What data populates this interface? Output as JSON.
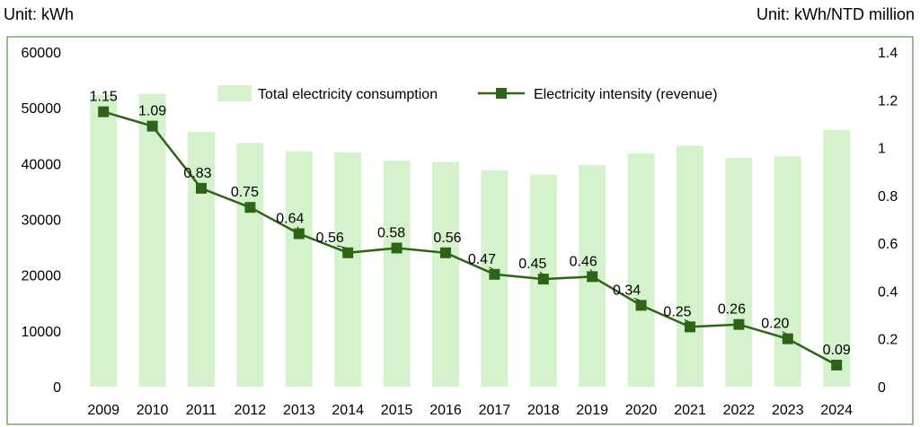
{
  "units": {
    "left": "Unit: kWh",
    "right": "Unit: kWh/NTD million"
  },
  "colors": {
    "bar": "#d6f2cc",
    "line": "#2e6417",
    "marker": "#2e6417",
    "frame": "#3a7d1e"
  },
  "chart_data": {
    "type": "bar",
    "categories": [
      "2009",
      "2010",
      "2011",
      "2012",
      "2013",
      "2014",
      "2015",
      "2016",
      "2017",
      "2018",
      "2019",
      "2020",
      "2021",
      "2022",
      "2023",
      "2024"
    ],
    "series": [
      {
        "name": "Total electricity consumption",
        "type": "bar",
        "axis": "left",
        "values": [
          52300,
          52500,
          45700,
          43700,
          42200,
          42000,
          40500,
          40300,
          38800,
          38000,
          39700,
          41800,
          43200,
          41000,
          41300,
          46000
        ]
      },
      {
        "name": "Electricity intensity (revenue)",
        "type": "line",
        "axis": "right",
        "values": [
          1.15,
          1.09,
          0.83,
          0.75,
          0.64,
          0.56,
          0.58,
          0.56,
          0.47,
          0.45,
          0.46,
          0.34,
          0.25,
          0.26,
          0.2,
          0.09
        ],
        "labels": [
          "1.15",
          "1.09",
          "0.83",
          "0.75",
          "0.64",
          "0.56",
          "0.58",
          "0.56",
          "0.47",
          "0.45",
          "0.46",
          "0.34",
          "0.25",
          "0.26",
          "0.20",
          "0.09"
        ]
      }
    ],
    "y_left": {
      "min": 0,
      "max": 60000,
      "ticks": [
        0,
        10000,
        20000,
        30000,
        40000,
        50000,
        60000
      ]
    },
    "y_right": {
      "min": 0,
      "max": 1.4,
      "ticks": [
        "0",
        "0.2",
        "0.4",
        "0.6",
        "0.8",
        "1",
        "1.2",
        "1.4"
      ]
    },
    "legend_position": "top-center",
    "grid": false
  }
}
